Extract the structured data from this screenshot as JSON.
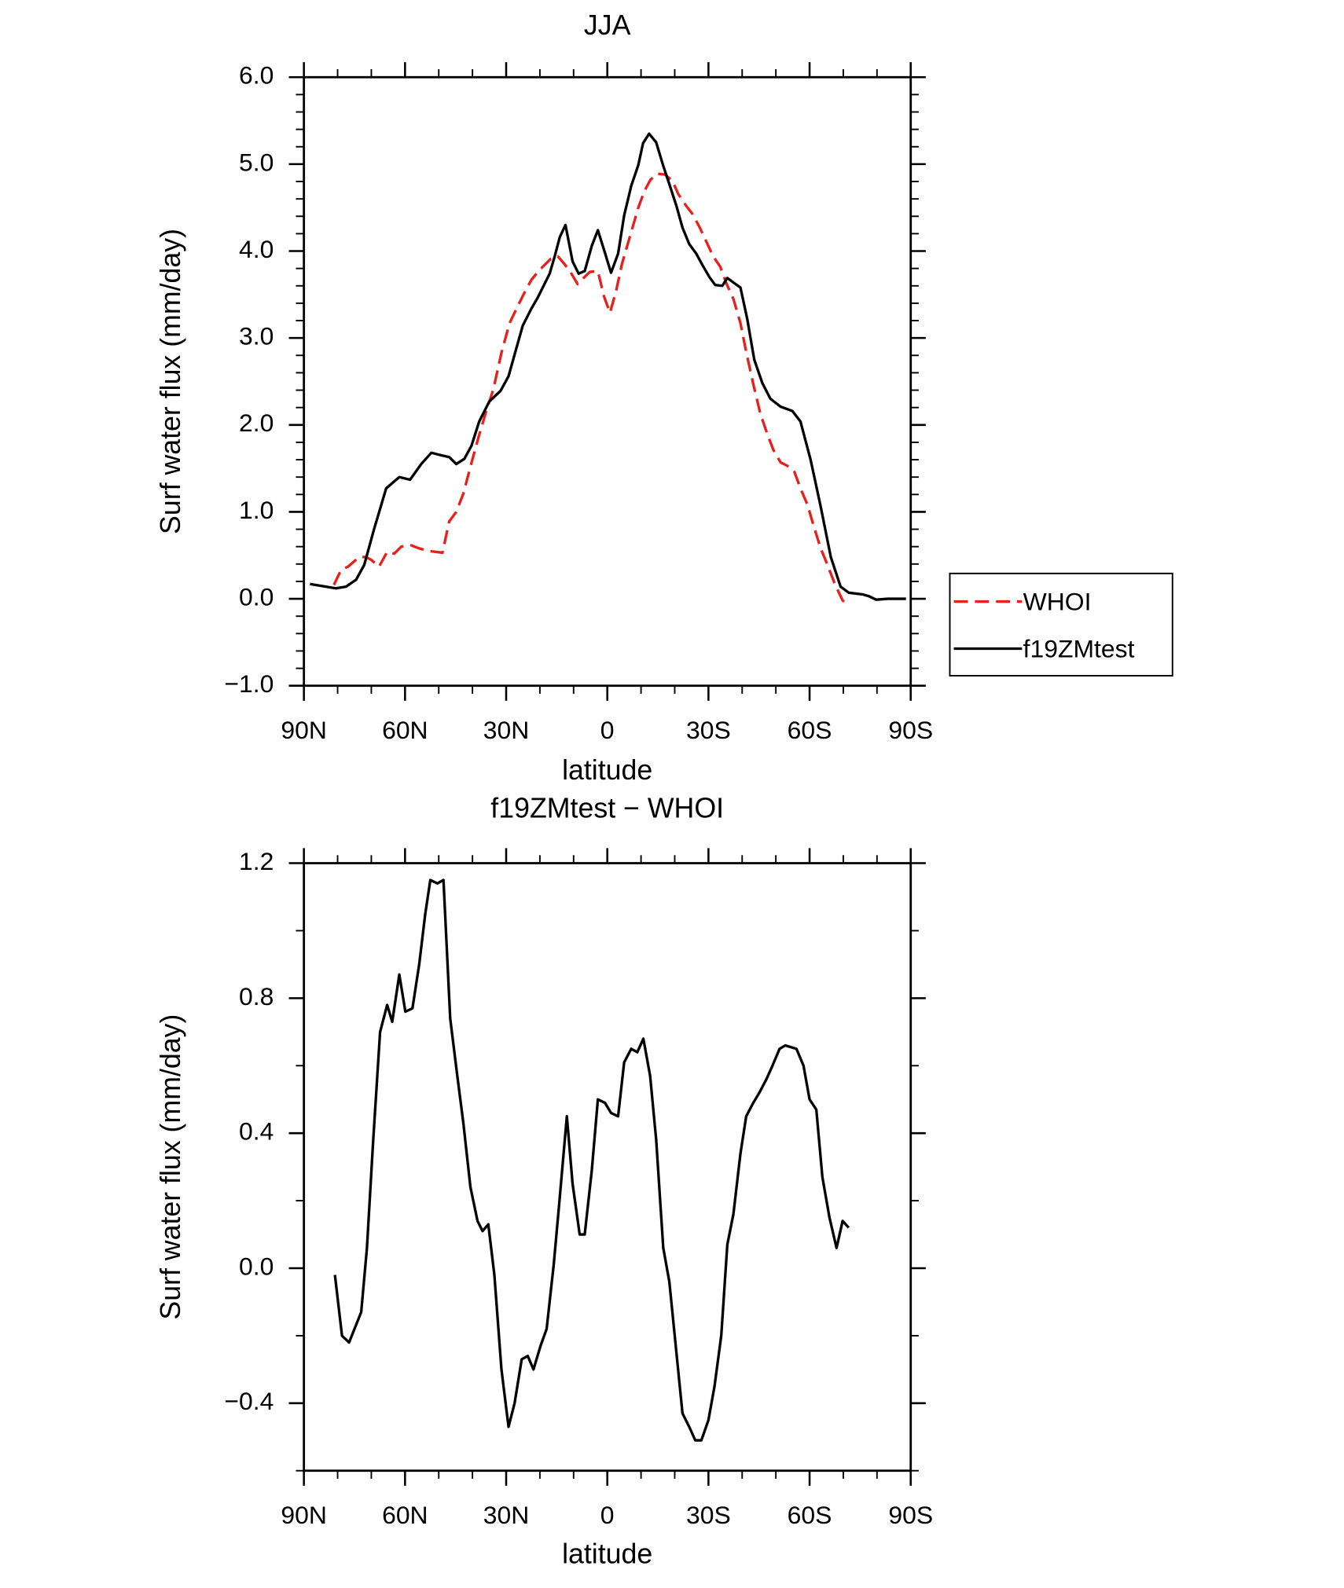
{
  "chart_data": [
    {
      "type": "line",
      "title": "JJA",
      "xlabel": "latitude",
      "ylabel": "Surf water flux (mm/day)",
      "xlim": [
        90,
        -90
      ],
      "ylim": [
        -1.0,
        6.0
      ],
      "xticks": [
        {
          "value": 90,
          "label": "90N"
        },
        {
          "value": 60,
          "label": "60N"
        },
        {
          "value": 30,
          "label": "30N"
        },
        0,
        {
          "value": -30,
          "label": "30S"
        },
        {
          "value": -60,
          "label": "60S"
        },
        {
          "value": -90,
          "label": "90S"
        }
      ],
      "yticks": [
        {
          "value": -1.0,
          "label": "−1.0"
        },
        {
          "value": 0.0,
          "label": "0.0"
        },
        {
          "value": 1.0,
          "label": "1.0"
        },
        {
          "value": 2.0,
          "label": "2.0"
        },
        {
          "value": 3.0,
          "label": "3.0"
        },
        {
          "value": 4.0,
          "label": "4.0"
        },
        {
          "value": 5.0,
          "label": "5.0"
        },
        {
          "value": 6.0,
          "label": "6.0"
        }
      ],
      "xminorticks": [
        80,
        70,
        50,
        40,
        20,
        10,
        -10,
        -20,
        -40,
        -50,
        -70,
        -80
      ],
      "yminorticks": [
        -0.8,
        -0.6,
        -0.4,
        -0.2,
        0.2,
        0.4,
        0.6,
        0.8,
        1.2,
        1.4,
        1.6,
        1.8,
        2.2,
        2.4,
        2.6,
        2.8,
        3.2,
        3.4,
        3.6,
        3.8,
        4.2,
        4.4,
        4.6,
        4.8,
        5.2,
        5.4,
        5.6,
        5.8
      ],
      "legend": "right",
      "series": [
        {
          "name": "WHOI",
          "color": "#e8201c",
          "dash": true,
          "x": [
            81.1,
            79.0,
            76.9,
            73.6,
            71.6,
            70.1,
            67.7,
            65.3,
            63.2,
            61.1,
            58.5,
            55.8,
            53.1,
            48.9,
            46.9,
            44.8,
            42.7,
            40.6,
            38.2,
            35.9,
            33.8,
            31.4,
            29.0,
            26.9,
            24.6,
            22.5,
            20.4,
            18.6,
            16.8,
            14.7,
            12.9,
            11.1,
            8.8,
            7.3,
            5.2,
            2.8,
            1.0,
            -0.8,
            -2.6,
            -4.4,
            -6.8,
            -9.2,
            -11.0,
            -12.8,
            -14.8,
            -17.1,
            -19.3,
            -21.0,
            -23.4,
            -25.2,
            -27.3,
            -29.6,
            -31.4,
            -33.5,
            -35.3,
            -37.4,
            -39.5,
            -41.2,
            -43.3,
            -45.4,
            -47.5,
            -49.3,
            -51.4,
            -53.4,
            -55.5,
            -57.3,
            -59.4,
            -61.2,
            -63.3,
            -65.3,
            -67.4,
            -69.8,
            -71.8
          ],
          "values": [
            0.16,
            0.33,
            0.37,
            0.48,
            0.48,
            0.45,
            0.37,
            0.54,
            0.52,
            0.6,
            0.62,
            0.58,
            0.55,
            0.53,
            0.89,
            1.0,
            1.21,
            1.52,
            1.86,
            2.16,
            2.41,
            2.83,
            3.17,
            3.34,
            3.52,
            3.67,
            3.77,
            3.84,
            3.91,
            3.94,
            3.86,
            3.77,
            3.62,
            3.68,
            3.76,
            3.77,
            3.48,
            3.29,
            3.54,
            3.86,
            4.18,
            4.5,
            4.69,
            4.82,
            4.89,
            4.88,
            4.81,
            4.66,
            4.52,
            4.43,
            4.28,
            4.09,
            3.94,
            3.82,
            3.63,
            3.45,
            3.17,
            2.84,
            2.47,
            2.13,
            1.89,
            1.71,
            1.57,
            1.53,
            1.46,
            1.27,
            1.08,
            0.84,
            0.58,
            0.39,
            0.18,
            -0.02,
            -0.07
          ]
        },
        {
          "name": "f19ZMtest",
          "color": "#000000",
          "dash": false,
          "x": [
            88.2,
            80.5,
            77.5,
            74.5,
            72.1,
            69.2,
            65.6,
            61.7,
            58.5,
            55.2,
            52.2,
            49.2,
            46.9,
            44.8,
            42.4,
            40.3,
            38.0,
            35.0,
            31.7,
            29.3,
            27.5,
            25.1,
            22.5,
            20.7,
            18.9,
            17.1,
            15.6,
            14.1,
            12.4,
            10.3,
            8.5,
            6.7,
            4.6,
            2.8,
            0.7,
            -1.1,
            -3.2,
            -5.0,
            -7.1,
            -9.2,
            -10.6,
            -12.4,
            -14.5,
            -16.6,
            -18.4,
            -20.5,
            -22.3,
            -24.3,
            -26.4,
            -28.2,
            -30.3,
            -32.0,
            -34.1,
            -35.6,
            -37.7,
            -39.5,
            -41.5,
            -43.6,
            -46.0,
            -48.4,
            -51.4,
            -54.9,
            -57.3,
            -60.3,
            -63.3,
            -66.3,
            -69.2,
            -71.6,
            -75.8,
            -77.6,
            -79.7,
            -83.2,
            -88.6
          ],
          "values": [
            0.17,
            0.12,
            0.14,
            0.22,
            0.39,
            0.8,
            1.27,
            1.4,
            1.37,
            1.55,
            1.68,
            1.65,
            1.63,
            1.55,
            1.61,
            1.76,
            2.04,
            2.27,
            2.39,
            2.56,
            2.81,
            3.14,
            3.34,
            3.46,
            3.6,
            3.74,
            3.94,
            4.16,
            4.3,
            3.88,
            3.74,
            3.77,
            4.06,
            4.24,
            3.98,
            3.75,
            3.97,
            4.41,
            4.75,
            4.99,
            5.24,
            5.35,
            5.25,
            4.98,
            4.77,
            4.52,
            4.27,
            4.08,
            3.97,
            3.84,
            3.7,
            3.61,
            3.6,
            3.69,
            3.63,
            3.58,
            3.22,
            2.75,
            2.48,
            2.3,
            2.21,
            2.16,
            2.04,
            1.6,
            1.06,
            0.48,
            0.14,
            0.07,
            0.05,
            0.03,
            -0.01,
            0.0,
            0.0
          ]
        }
      ]
    },
    {
      "type": "line",
      "title": "f19ZMtest − WHOI",
      "xlabel": "latitude",
      "ylabel": "Surf water flux (mm/day)",
      "xlim": [
        90,
        -90
      ],
      "ylim": [
        -0.6,
        1.2
      ],
      "xticks": [
        {
          "value": 90,
          "label": "90N"
        },
        {
          "value": 60,
          "label": "60N"
        },
        {
          "value": 30,
          "label": "30N"
        },
        0,
        {
          "value": -30,
          "label": "30S"
        },
        {
          "value": -60,
          "label": "60S"
        },
        {
          "value": -90,
          "label": "90S"
        }
      ],
      "yticks": [
        {
          "value": -0.4,
          "label": "−0.4"
        },
        {
          "value": 0.0,
          "label": "0.0"
        },
        0.4,
        0.8,
        1.2
      ],
      "xminorticks": [
        80,
        70,
        50,
        40,
        20,
        10,
        -10,
        -20,
        -40,
        -50,
        -70,
        -80
      ],
      "yminorticks": [
        -0.6,
        -0.2,
        0.2,
        0.6,
        1.0
      ],
      "color": "#000000",
      "x": [
        80.8,
        78.7,
        76.6,
        73.0,
        71.3,
        69.5,
        67.4,
        65.3,
        63.8,
        61.7,
        59.9,
        57.8,
        55.8,
        54.0,
        52.5,
        50.4,
        48.6,
        46.6,
        44.5,
        42.7,
        40.6,
        38.5,
        37.0,
        35.3,
        33.5,
        31.4,
        29.3,
        27.5,
        25.4,
        23.6,
        21.9,
        19.8,
        18.0,
        15.9,
        14.1,
        12.0,
        10.3,
        8.2,
        6.7,
        4.6,
        2.8,
        0.7,
        -1.1,
        -3.2,
        -5.0,
        -7.1,
        -8.9,
        -10.7,
        -12.7,
        -14.5,
        -16.6,
        -18.4,
        -20.5,
        -22.3,
        -24.3,
        -26.1,
        -27.9,
        -30.0,
        -31.8,
        -33.8,
        -35.6,
        -37.4,
        -39.5,
        -41.2,
        -43.3,
        -45.1,
        -47.2,
        -49.0,
        -51.1,
        -52.8,
        -56.1,
        -58.2,
        -60.0,
        -62.0,
        -63.8,
        -65.9,
        -68.0,
        -69.8,
        -71.6
      ],
      "values": [
        -0.02,
        -0.2,
        -0.22,
        -0.13,
        0.06,
        0.37,
        0.7,
        0.78,
        0.73,
        0.87,
        0.76,
        0.77,
        0.9,
        1.05,
        1.15,
        1.14,
        1.15,
        0.74,
        0.57,
        0.43,
        0.24,
        0.14,
        0.11,
        0.13,
        -0.02,
        -0.3,
        -0.47,
        -0.4,
        -0.27,
        -0.26,
        -0.3,
        -0.23,
        -0.18,
        0.01,
        0.21,
        0.45,
        0.25,
        0.1,
        0.1,
        0.29,
        0.5,
        0.49,
        0.46,
        0.45,
        0.61,
        0.65,
        0.64,
        0.68,
        0.57,
        0.38,
        0.06,
        -0.04,
        -0.25,
        -0.43,
        -0.47,
        -0.51,
        -0.51,
        -0.45,
        -0.35,
        -0.2,
        0.07,
        0.16,
        0.34,
        0.45,
        0.49,
        0.52,
        0.56,
        0.6,
        0.65,
        0.66,
        0.65,
        0.6,
        0.5,
        0.47,
        0.27,
        0.15,
        0.06,
        0.14,
        0.12
      ]
    }
  ]
}
